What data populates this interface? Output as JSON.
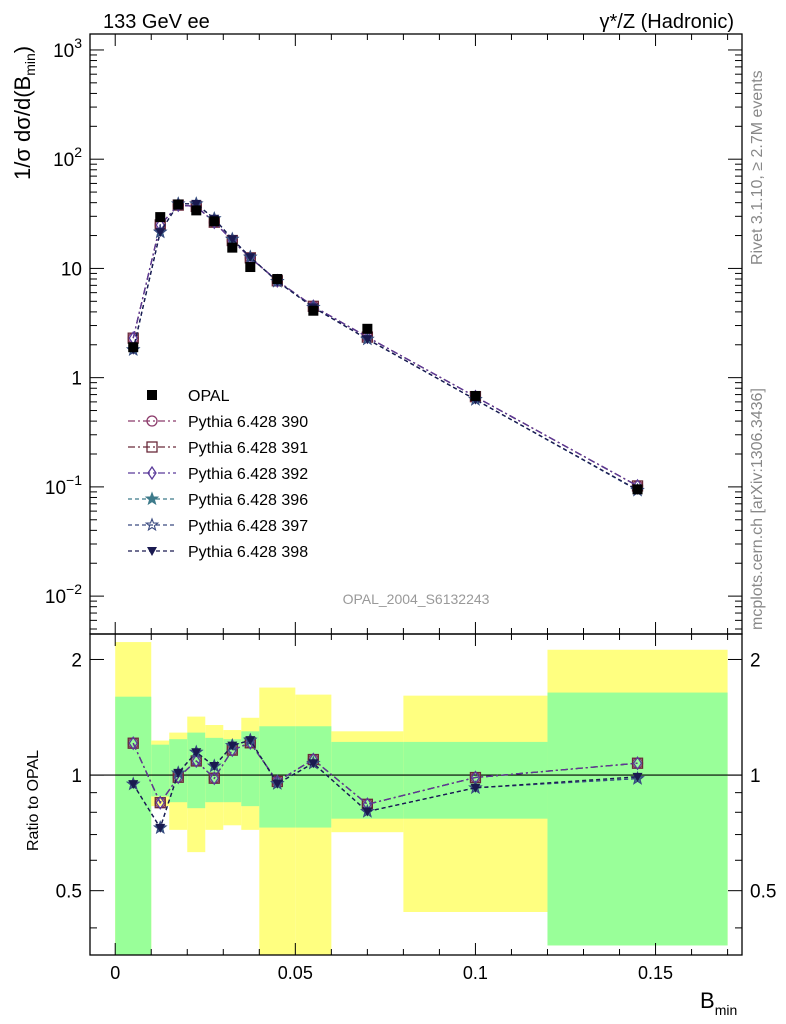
{
  "chart_data": {
    "type": "line",
    "title_left": "133 GeV ee",
    "title_right": "γ*/Z (Hadronic)",
    "analysis_label": "OPAL_2004_S6132243",
    "side_label_top": "Rivet 3.1.10, ≥ 2.7M events",
    "side_label_bottom": "mcplots.cern.ch [arXiv:1306.3436]",
    "xlabel_main": "B",
    "xlabel_sub": "min",
    "ylabel_prefix": "1/σ dσ/d(B",
    "ylabel_sub": "min",
    "ylabel_suffix": ")",
    "ratio_ylabel": "Ratio to OPAL",
    "x_range": [
      -0.007,
      0.174
    ],
    "y_range": [
      0.0045,
      1400
    ],
    "y_scale": "log",
    "ratio_range": [
      0.34,
      2.33
    ],
    "ratio_scale": "log",
    "x_ticks": [
      {
        "v": 0,
        "label": "0"
      },
      {
        "v": 0.05,
        "label": "0.05"
      },
      {
        "v": 0.1,
        "label": "0.1"
      },
      {
        "v": 0.15,
        "label": "0.15"
      }
    ],
    "y_ticks": [
      {
        "v": 0.01,
        "base": "10",
        "exp": "−2"
      },
      {
        "v": 0.1,
        "base": "10",
        "exp": "−1"
      },
      {
        "v": 1,
        "base": "1",
        "exp": ""
      },
      {
        "v": 10,
        "base": "10",
        "exp": ""
      },
      {
        "v": 100,
        "base": "10",
        "exp": "2"
      },
      {
        "v": 1000,
        "base": "10",
        "exp": "3"
      }
    ],
    "ratio_ticks": [
      {
        "v": 0.5,
        "label": "0.5"
      },
      {
        "v": 1,
        "label": "1"
      },
      {
        "v": 2,
        "label": "2"
      }
    ],
    "bin_edges": [
      0,
      0.01,
      0.015,
      0.02,
      0.025,
      0.03,
      0.035,
      0.04,
      0.05,
      0.06,
      0.08,
      0.12,
      0.17
    ],
    "x": [
      0.005,
      0.0125,
      0.0175,
      0.0225,
      0.0275,
      0.0325,
      0.0375,
      0.045,
      0.055,
      0.07,
      0.1,
      0.145
    ],
    "data": {
      "name": "OPAL",
      "values": [
        1.9,
        29.5,
        38.5,
        34.0,
        27.0,
        15.5,
        10.3,
        8.0,
        4.1,
        2.8,
        0.68,
        0.095
      ],
      "band_inner": [
        [
          0.34,
          1.6
        ],
        [
          0.88,
          1.2
        ],
        [
          0.85,
          1.24
        ],
        [
          0.82,
          1.29
        ],
        [
          0.85,
          1.25
        ],
        [
          0.85,
          1.24
        ],
        [
          0.83,
          1.3
        ],
        [
          0.73,
          1.34
        ],
        [
          0.73,
          1.34
        ],
        [
          0.77,
          1.22
        ],
        [
          0.77,
          1.22
        ],
        [
          0.36,
          1.64
        ]
      ],
      "band_outer": [
        [
          0.34,
          2.22
        ],
        [
          0.83,
          1.23
        ],
        [
          0.72,
          1.29
        ],
        [
          0.63,
          1.42
        ],
        [
          0.72,
          1.35
        ],
        [
          0.74,
          1.31
        ],
        [
          0.72,
          1.41
        ],
        [
          0.34,
          1.69
        ],
        [
          0.34,
          1.62
        ],
        [
          0.71,
          1.3
        ],
        [
          0.44,
          1.61
        ],
        [
          0.36,
          2.12
        ]
      ]
    },
    "series": [
      {
        "name": "Pythia 6.428 390",
        "color": "#8b3a6a",
        "marker": "circle-open",
        "dash": "7,3,2,3",
        "values": [
          2.3,
          25.0,
          38.0,
          37.0,
          26.5,
          18.0,
          12.5,
          7.7,
          4.5,
          2.35,
          0.67,
          0.102
        ]
      },
      {
        "name": "Pythia 6.428 391",
        "color": "#6a2a3a",
        "marker": "square-open",
        "dash": "7,3,2,3",
        "values": [
          2.3,
          25.0,
          38.0,
          37.0,
          26.5,
          18.0,
          12.5,
          7.7,
          4.5,
          2.35,
          0.67,
          0.102
        ]
      },
      {
        "name": "Pythia 6.428 392",
        "color": "#5a3a9a",
        "marker": "diamond-open",
        "dash": "7,3,2,3",
        "values": [
          2.3,
          25.0,
          38.0,
          37.0,
          26.5,
          18.0,
          12.5,
          7.7,
          4.5,
          2.35,
          0.67,
          0.102
        ]
      },
      {
        "name": "Pythia 6.428 396",
        "color": "#3d7a8a",
        "marker": "star-filled",
        "dash": "4,3",
        "values": [
          1.8,
          21.5,
          39.0,
          39.0,
          28.5,
          18.5,
          12.7,
          7.6,
          4.4,
          2.25,
          0.63,
          0.093
        ]
      },
      {
        "name": "Pythia 6.428 397",
        "color": "#3a4a80",
        "marker": "star-open",
        "dash": "4,3",
        "values": [
          1.8,
          21.5,
          39.0,
          39.0,
          28.5,
          18.5,
          12.7,
          7.6,
          4.4,
          2.25,
          0.63,
          0.093
        ]
      },
      {
        "name": "Pythia 6.428 398",
        "color": "#1a1a50",
        "marker": "triangle-down-filled",
        "dash": "4,3",
        "values": [
          1.8,
          21.5,
          39.0,
          39.0,
          28.5,
          18.5,
          12.7,
          7.6,
          4.4,
          2.25,
          0.63,
          0.094
        ]
      }
    ],
    "band_colors": {
      "inner": "#99ff99",
      "outer": "#ffff80"
    }
  }
}
